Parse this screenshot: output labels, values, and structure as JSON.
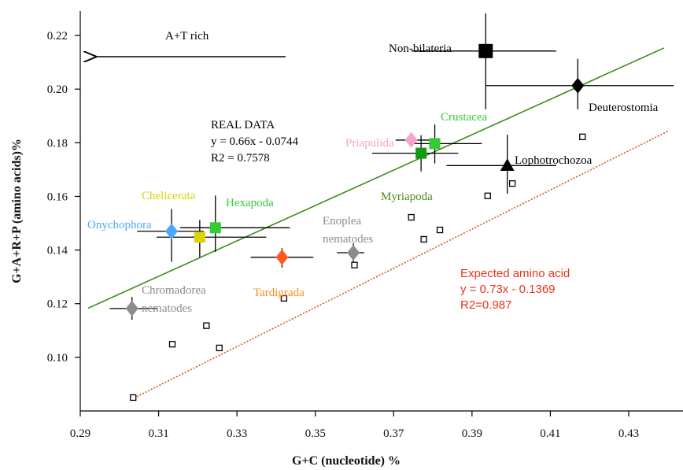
{
  "chart_data": {
    "type": "scatter",
    "title": "",
    "xlabel": "G+C (nucleotide) %",
    "ylabel": "G+A+R+P (amino acids)%",
    "xlim": [
      0.29,
      0.44
    ],
    "ylim": [
      0.08,
      0.23
    ],
    "xticks": [
      "0.29",
      "0.31",
      "0.33",
      "0.35",
      "0.37",
      "0.39",
      "0.41",
      "0.43"
    ],
    "yticks": [
      "0.10",
      "0.12",
      "0.14",
      "0.16",
      "0.18",
      "0.20",
      "0.22"
    ],
    "xtick_values": [
      0.29,
      0.31,
      0.33,
      0.35,
      0.37,
      0.39,
      0.41,
      0.43
    ],
    "ytick_values": [
      0.1,
      0.12,
      0.14,
      0.16,
      0.18,
      0.2,
      0.22
    ],
    "grid": false,
    "annotations": {
      "at_rich": "A+T rich",
      "real_data": [
        "REAL DATA",
        "y = 0.66x - 0.0744",
        "R2 = 0.7578"
      ],
      "expected": [
        "Expected amino acid",
        "y = 0.73x - 0.1369",
        "R2=0.987"
      ]
    },
    "real_fit": {
      "slope": 0.66,
      "intercept": -0.0744,
      "x_range": [
        0.292,
        0.439
      ],
      "color": "#3d8a1e"
    },
    "expected_fit": {
      "slope": 0.73,
      "intercept": -0.1369,
      "x_range": [
        0.303,
        0.44
      ],
      "color": "#d9531e"
    },
    "groups": [
      {
        "name": "Non-bilateria",
        "x": 0.3935,
        "y": 0.2142,
        "xerr": [
          0.3745,
          0.4115
        ],
        "yerr": [
          0.1925,
          0.2282
        ],
        "marker": "square",
        "color": "#000000",
        "size": 18,
        "label_color": "#000000"
      },
      {
        "name": "Deuterostomia",
        "x": 0.417,
        "y": 0.2013,
        "xerr": [
          0.3935,
          0.4415
        ],
        "yerr": [
          0.1925,
          0.2113
        ],
        "marker": "diamond",
        "color": "#000000",
        "size": 18,
        "label_color": "#000000"
      },
      {
        "name": "Lophotrochozoa",
        "x": 0.399,
        "y": 0.1715,
        "xerr": [
          0.3835,
          0.4115
        ],
        "yerr": [
          0.161,
          0.183
        ],
        "marker": "triangle",
        "color": "#000000",
        "size": 18,
        "label_color": "#000000"
      },
      {
        "name": "Crustacea",
        "x": 0.3805,
        "y": 0.1797,
        "xerr": [
          0.3745,
          0.3925
        ],
        "yerr": [
          0.1723,
          0.1868
        ],
        "marker": "square",
        "color": "#33cc33",
        "size": 14,
        "label_color": "#33cc33"
      },
      {
        "name": "Myriapoda",
        "x": 0.377,
        "y": 0.1761,
        "xerr": [
          0.3645,
          0.3865
        ],
        "yerr": [
          0.1693,
          0.1828
        ],
        "marker": "square",
        "color": "#139913",
        "size": 14,
        "label_color": "#4d8a1e"
      },
      {
        "name": "Priapulida",
        "x": 0.3745,
        "y": 0.181,
        "xerr": [
          0.3705,
          0.3795
        ],
        "yerr": [
          0.1783,
          0.1838
        ],
        "marker": "diamond",
        "color": "#f5a3c8",
        "size": 18,
        "label_color": "#f5a3c8"
      },
      {
        "name": "Hexapoda",
        "x": 0.3245,
        "y": 0.1483,
        "xerr": [
          0.3155,
          0.3435
        ],
        "yerr": [
          0.1393,
          0.1603
        ],
        "marker": "square",
        "color": "#33cc33",
        "size": 14,
        "label_color": "#33cc33"
      },
      {
        "name": "Chelicerata",
        "x": 0.3205,
        "y": 0.1448,
        "xerr": [
          0.3095,
          0.3375
        ],
        "yerr": [
          0.1373,
          0.1512
        ],
        "marker": "square",
        "color": "#dbd400",
        "size": 14,
        "label_color": "#dbd400"
      },
      {
        "name": "Onychophora",
        "x": 0.3133,
        "y": 0.147,
        "xerr": [
          0.3045,
          0.3215
        ],
        "yerr": [
          0.1356,
          0.1553
        ],
        "marker": "diamond",
        "color": "#4da6ff",
        "size": 18,
        "label_color": "#4da6ff"
      },
      {
        "name": "Tardigrada",
        "x": 0.3415,
        "y": 0.1373,
        "xerr": [
          0.3335,
          0.3495
        ],
        "yerr": [
          0.1335,
          0.1407
        ],
        "marker": "diamond",
        "color": "#ff5a1f",
        "size": 18,
        "label_color": "#ff8c1a"
      },
      {
        "name": "Enoplea nematodes",
        "x": 0.3597,
        "y": 0.139,
        "xerr": [
          0.3555,
          0.3625
        ],
        "yerr": [
          0.1355,
          0.1425
        ],
        "marker": "diamond",
        "color": "#8c8c8c",
        "size": 18,
        "label_color": "#8c8c8c"
      },
      {
        "name": "Chromadorea nematodes",
        "x": 0.3032,
        "y": 0.1182,
        "xerr": [
          0.2975,
          0.3095
        ],
        "yerr": [
          0.114,
          0.1225
        ],
        "marker": "diamond",
        "color": "#8c8c8c",
        "size": 18,
        "label_color": "#8c8c8c"
      }
    ],
    "expected_points": [
      {
        "x": 0.3035,
        "y": 0.085
      },
      {
        "x": 0.3135,
        "y": 0.1049
      },
      {
        "x": 0.3222,
        "y": 0.1118
      },
      {
        "x": 0.3255,
        "y": 0.1035
      },
      {
        "x": 0.342,
        "y": 0.122
      },
      {
        "x": 0.36,
        "y": 0.1344
      },
      {
        "x": 0.3745,
        "y": 0.1522
      },
      {
        "x": 0.3777,
        "y": 0.144
      },
      {
        "x": 0.3818,
        "y": 0.1475
      },
      {
        "x": 0.394,
        "y": 0.1602
      },
      {
        "x": 0.4003,
        "y": 0.1648
      },
      {
        "x": 0.4182,
        "y": 0.1822
      }
    ]
  }
}
